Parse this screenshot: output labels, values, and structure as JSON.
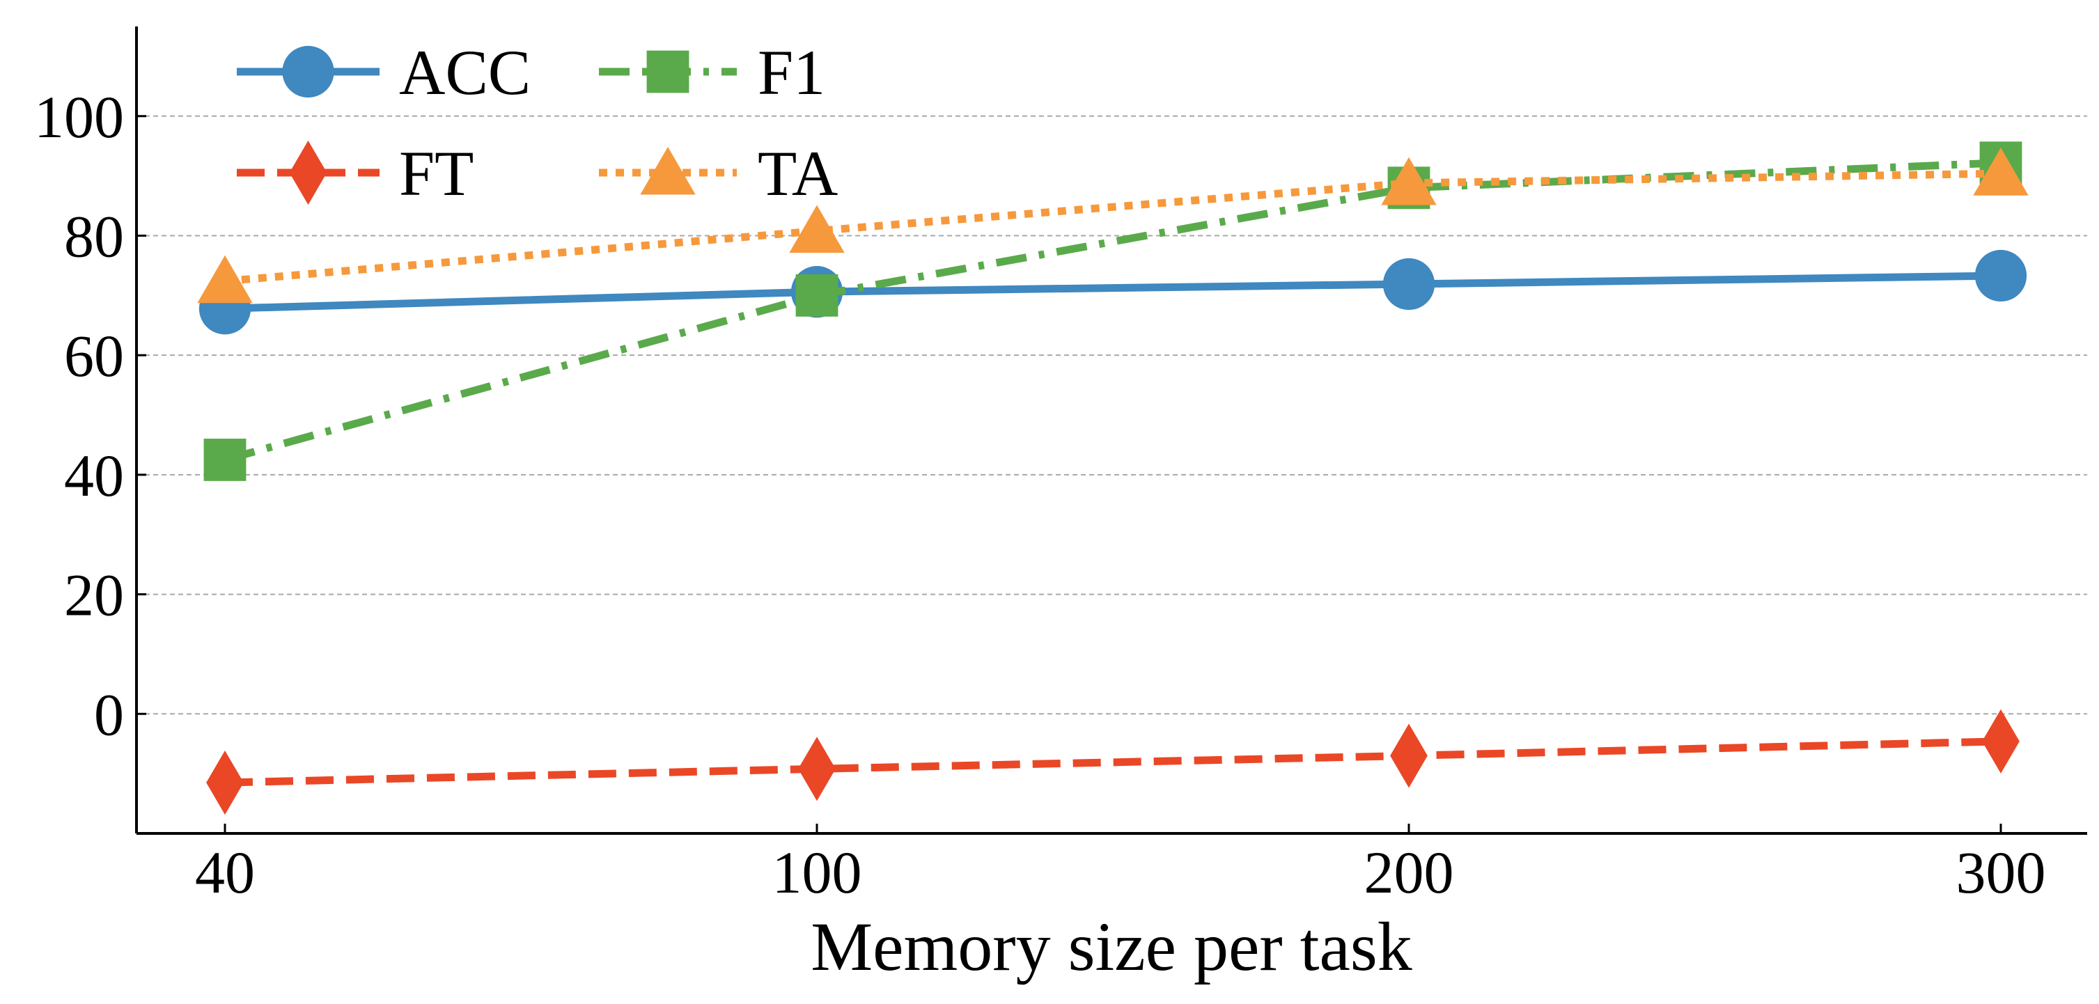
{
  "chart_data": {
    "type": "line",
    "title": "",
    "xlabel": "Memory size per task",
    "ylabel": "",
    "categories": [
      "40",
      "100",
      "200",
      "300"
    ],
    "ylim": [
      -20,
      115
    ],
    "yticks": [
      0,
      20,
      40,
      60,
      80,
      100
    ],
    "grid": "horizontal dashed",
    "legend_position": "top-left",
    "series": [
      {
        "name": "ACC",
        "values": [
          67.8,
          70.6,
          71.9,
          73.3
        ],
        "color": "#3f88c0",
        "marker": "circle",
        "linestyle": "solid"
      },
      {
        "name": "F1",
        "values": [
          42.5,
          70.0,
          88.0,
          92.2
        ],
        "color": "#5aaa4b",
        "marker": "square",
        "linestyle": "dashdot"
      },
      {
        "name": "FT",
        "values": [
          -11.5,
          -9.2,
          -7.0,
          -4.6
        ],
        "color": "#ea4726",
        "marker": "diamond",
        "linestyle": "dashed"
      },
      {
        "name": "TA",
        "values": [
          72.4,
          80.8,
          88.8,
          90.4
        ],
        "color": "#f6993c",
        "marker": "triangle",
        "linestyle": "dotted"
      }
    ]
  }
}
